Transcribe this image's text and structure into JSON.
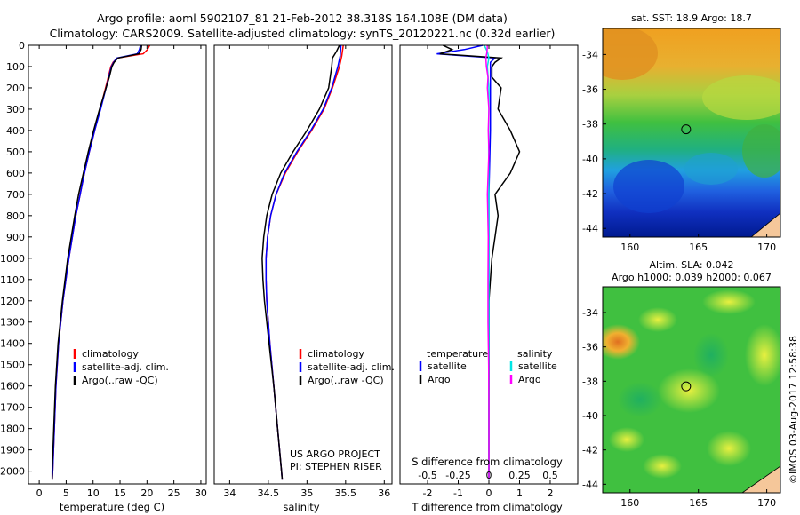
{
  "header": {
    "title_line1": "Argo profile: aoml 5902107_81 21-Feb-2012 38.318S 164.108E (DM data)",
    "title_line2": "Climatology: CARS2009. Satellite-adjusted climatology: synTS_20120221.nc (0.32d earlier)"
  },
  "stamp": "©IMOS 03-Aug-2017 12:58:38",
  "colors": {
    "climatology": "#ff0000",
    "satellite": "#0000ff",
    "argo": "#000000",
    "sal_satellite": "#00e5e5",
    "sal_argo": "#ff00ff",
    "land": "#f5c79a"
  },
  "chart_data": [
    {
      "type": "line",
      "xlabel": "temperature (deg C)",
      "ylabel": "",
      "xlim": [
        -2,
        31
      ],
      "ylim": [
        2060,
        0
      ],
      "xticks": [
        "0",
        "5",
        "10",
        "15",
        "20",
        "25",
        "30"
      ],
      "yticks": [
        "0",
        "100",
        "200",
        "300",
        "400",
        "500",
        "600",
        "700",
        "800",
        "900",
        "1000",
        "1100",
        "1200",
        "1300",
        "1400",
        "1500",
        "1600",
        "1700",
        "1800",
        "1900",
        "2000"
      ],
      "legend_position": "middle-left",
      "series": [
        {
          "name": "climatology",
          "color": "#ff0000",
          "y": [
            0,
            20,
            40,
            60,
            80,
            100,
            150,
            200,
            300,
            400,
            500,
            600,
            700,
            800,
            1000,
            1200,
            1400,
            1600,
            1800,
            2000,
            2040
          ],
          "x": [
            20.5,
            20.1,
            19.3,
            14.5,
            13.7,
            13.3,
            12.8,
            12.3,
            11.3,
            10.3,
            9.3,
            8.4,
            7.6,
            6.8,
            5.5,
            4.4,
            3.6,
            3.1,
            2.8,
            2.5,
            2.4
          ]
        },
        {
          "name": "satellite-adj. clim.",
          "color": "#0000ff",
          "y": [
            0,
            20,
            40,
            60,
            80,
            100,
            150,
            200,
            300,
            400,
            500,
            600,
            700,
            800,
            1000,
            1200,
            1400,
            1600,
            1800,
            2000,
            2040
          ],
          "x": [
            18.8,
            18.6,
            18.2,
            14.4,
            13.8,
            13.4,
            12.9,
            12.4,
            11.4,
            10.3,
            9.3,
            8.4,
            7.6,
            6.8,
            5.5,
            4.4,
            3.6,
            3.1,
            2.8,
            2.5,
            2.4
          ]
        },
        {
          "name": "Argo(..raw -QC)",
          "color": "#000000",
          "y": [
            0,
            20,
            40,
            60,
            80,
            100,
            150,
            200,
            300,
            400,
            500,
            600,
            700,
            800,
            1000,
            1200,
            1400,
            1600,
            1800,
            2000,
            2040
          ],
          "x": [
            19.0,
            18.9,
            18.5,
            14.6,
            13.9,
            13.5,
            13.0,
            12.4,
            11.2,
            10.1,
            9.1,
            8.2,
            7.3,
            6.6,
            5.3,
            4.3,
            3.5,
            3.0,
            2.7,
            2.4,
            2.4
          ]
        }
      ]
    },
    {
      "type": "line",
      "xlabel": "salinity",
      "ylabel": "",
      "xlim": [
        33.8,
        36.1
      ],
      "ylim": [
        2060,
        0
      ],
      "xticks": [
        "34",
        "34.5",
        "35",
        "35.5",
        "36"
      ],
      "legend_position": "middle-right",
      "annotation_line1": "US ARGO PROJECT",
      "annotation_line2": "PI: STEPHEN RISER",
      "series": [
        {
          "name": "climatology",
          "color": "#ff0000",
          "y": [
            0,
            50,
            100,
            200,
            300,
            400,
            500,
            600,
            700,
            800,
            900,
            1000,
            1100,
            1200,
            1400,
            1600,
            1800,
            2000,
            2040
          ],
          "x": [
            35.47,
            35.45,
            35.42,
            35.33,
            35.22,
            35.06,
            34.88,
            34.72,
            34.6,
            34.53,
            34.49,
            34.47,
            34.47,
            34.48,
            34.52,
            34.57,
            34.62,
            34.67,
            34.68
          ]
        },
        {
          "name": "satellite-adj. clim.",
          "color": "#0000ff",
          "y": [
            0,
            50,
            100,
            200,
            300,
            400,
            500,
            600,
            700,
            800,
            900,
            1000,
            1100,
            1200,
            1400,
            1600,
            1800,
            2000,
            2040
          ],
          "x": [
            35.44,
            35.43,
            35.4,
            35.32,
            35.21,
            35.05,
            34.87,
            34.71,
            34.6,
            34.53,
            34.49,
            34.47,
            34.47,
            34.48,
            34.52,
            34.57,
            34.62,
            34.67,
            34.68
          ]
        },
        {
          "name": "Argo(..raw -QC)",
          "color": "#000000",
          "y": [
            0,
            30,
            60,
            100,
            200,
            300,
            400,
            500,
            600,
            700,
            800,
            900,
            1000,
            1100,
            1200,
            1300,
            1400,
            1600,
            1800,
            2000,
            2040
          ],
          "x": [
            35.42,
            35.38,
            35.33,
            35.32,
            35.28,
            35.16,
            35.0,
            34.82,
            34.66,
            34.55,
            34.48,
            34.44,
            34.42,
            34.43,
            34.45,
            34.48,
            34.51,
            34.57,
            34.62,
            34.67,
            34.68
          ]
        }
      ]
    },
    {
      "type": "line",
      "xlabel": "T difference from climatology",
      "top_axis_label": "S difference from climatology",
      "xlim": [
        -2.9,
        2.9
      ],
      "ylim": [
        2060,
        0
      ],
      "xticks": [
        "-2",
        "-1",
        "0",
        "1",
        "2"
      ],
      "top_xticks": [
        "-0.5",
        "-0.25",
        "0",
        "0.25",
        "0.5"
      ],
      "legend_position": "middle",
      "legend_title_t": "temperature",
      "legend_title_s": "salinity",
      "series": [
        {
          "name": "satellite",
          "group": "temperature",
          "color": "#0000ff",
          "y": [
            0,
            20,
            40,
            60,
            80,
            100,
            200,
            400,
            700,
            1000,
            1500,
            2040
          ],
          "x": [
            -0.2,
            -0.8,
            -1.7,
            0.2,
            0.05,
            0.05,
            0.05,
            0.05,
            0.0,
            0.0,
            0.0,
            0.0
          ]
        },
        {
          "name": "Argo",
          "group": "temperature",
          "color": "#000000",
          "y": [
            0,
            20,
            40,
            60,
            80,
            100,
            150,
            200,
            300,
            400,
            500,
            600,
            700,
            800,
            900,
            1000,
            1200,
            1400,
            1600,
            1800,
            2000,
            2040
          ],
          "x": [
            -1.5,
            -1.2,
            -1.6,
            0.4,
            0.2,
            0.1,
            0.1,
            0.4,
            0.3,
            0.7,
            1.0,
            0.7,
            0.2,
            0.3,
            0.2,
            0.1,
            0.0,
            0.0,
            0.0,
            0.0,
            0.0,
            0.0
          ]
        },
        {
          "name": "satellite",
          "group": "salinity",
          "color": "#00e5e5",
          "y": [
            0,
            30,
            60,
            100,
            200,
            300,
            400,
            500,
            700,
            1000,
            1500,
            2040
          ],
          "x": [
            -0.15,
            -0.05,
            0.0,
            -0.05,
            0.0,
            0.0,
            -0.01,
            -0.01,
            0.0,
            0.0,
            0.0,
            0.0
          ]
        },
        {
          "name": "Argo",
          "group": "salinity",
          "color": "#ff00ff",
          "y": [
            0,
            30,
            60,
            100,
            150,
            200,
            300,
            400,
            500,
            700,
            900,
            1100,
            1300,
            1500,
            1700,
            1900,
            2040
          ],
          "x": [
            -0.05,
            -0.06,
            -0.1,
            -0.08,
            -0.03,
            -0.05,
            0.0,
            -0.02,
            0.0,
            -0.05,
            -0.02,
            -0.03,
            -0.03,
            -0.01,
            0.0,
            0.0,
            0.0
          ]
        }
      ]
    },
    {
      "type": "heatmap",
      "title": "sat. SST: 18.9 Argo: 18.7",
      "xlim": [
        158,
        171
      ],
      "ylim": [
        -44.5,
        -32.5
      ],
      "xticks": [
        "160",
        "165",
        "170"
      ],
      "yticks": [
        "-34",
        "-36",
        "-38",
        "-40",
        "-42",
        "-44"
      ],
      "marker": {
        "lon": 164.1,
        "lat": -38.3
      }
    },
    {
      "type": "heatmap",
      "title_line1": "Altim. SLA: 0.042",
      "title_line2": "Argo h1000: 0.039 h2000: 0.067",
      "xlim": [
        158,
        171
      ],
      "ylim": [
        -44.5,
        -32.5
      ],
      "xticks": [
        "160",
        "165",
        "170"
      ],
      "yticks": [
        "-34",
        "-36",
        "-38",
        "-40",
        "-42",
        "-44"
      ],
      "marker": {
        "lon": 164.1,
        "lat": -38.3
      }
    }
  ]
}
